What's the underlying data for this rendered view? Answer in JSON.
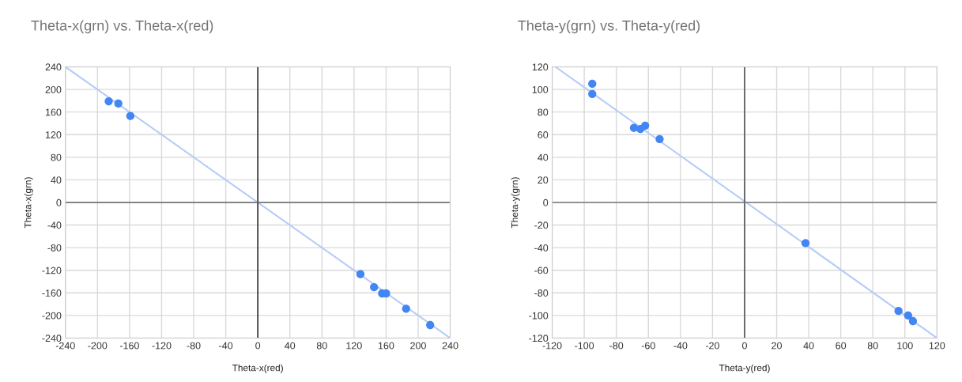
{
  "chart_data": [
    {
      "type": "scatter",
      "title": "Theta-x(grn) vs. Theta-x(red)",
      "xlabel": "Theta-x(red)",
      "ylabel": "Theta-x(grn)",
      "xlim": [
        -240,
        240
      ],
      "ylim": [
        -240,
        240
      ],
      "xticks": [
        -240,
        -200,
        -160,
        -120,
        -80,
        -40,
        0,
        40,
        80,
        120,
        160,
        200,
        240
      ],
      "yticks": [
        -240,
        -200,
        -160,
        -120,
        -80,
        -40,
        0,
        40,
        80,
        120,
        160,
        200,
        240
      ],
      "grid": true,
      "legend": false,
      "marker": "circle",
      "ref_lines": [
        {
          "axis": "x",
          "value": 0,
          "color": "#333333"
        },
        {
          "axis": "y",
          "value": 0,
          "color": "#666666"
        }
      ],
      "series": [
        {
          "color": "#4285f4",
          "x": [
            -186,
            -174,
            -159,
            128,
            145,
            155,
            160,
            185,
            215
          ],
          "values": [
            179,
            175,
            153,
            -127,
            -150,
            -161,
            -161,
            -188,
            -217
          ]
        },
        {
          "type": "line",
          "color": "#b5cdf7",
          "marker": "none",
          "x": [
            -240,
            240
          ],
          "values": [
            240,
            -240
          ]
        }
      ]
    },
    {
      "type": "scatter",
      "title": "Theta-y(grn) vs. Theta-y(red)",
      "xlabel": "Theta-y(red)",
      "ylabel": "Theta-y(grn)",
      "xlim": [
        -120,
        120
      ],
      "ylim": [
        -120,
        120
      ],
      "xticks": [
        -120,
        -100,
        -80,
        -60,
        -40,
        -20,
        0,
        20,
        40,
        60,
        80,
        100,
        120
      ],
      "yticks": [
        -120,
        -100,
        -80,
        -60,
        -40,
        -20,
        0,
        20,
        40,
        60,
        80,
        100,
        120
      ],
      "grid": true,
      "legend": false,
      "marker": "circle",
      "ref_lines": [
        {
          "axis": "x",
          "value": 0,
          "color": "#555555"
        },
        {
          "axis": "y",
          "value": 0,
          "color": "#777777"
        }
      ],
      "series": [
        {
          "color": "#4285f4",
          "x": [
            -95,
            -95,
            -69,
            -65,
            -62,
            -53,
            38,
            96,
            102,
            105
          ],
          "values": [
            105,
            96,
            66,
            65,
            68,
            56,
            -36,
            -96,
            -100,
            -105
          ]
        },
        {
          "type": "line",
          "color": "#b5cdf7",
          "marker": "none",
          "x": [
            -118,
            120
          ],
          "values": [
            120,
            -120
          ]
        }
      ]
    }
  ]
}
